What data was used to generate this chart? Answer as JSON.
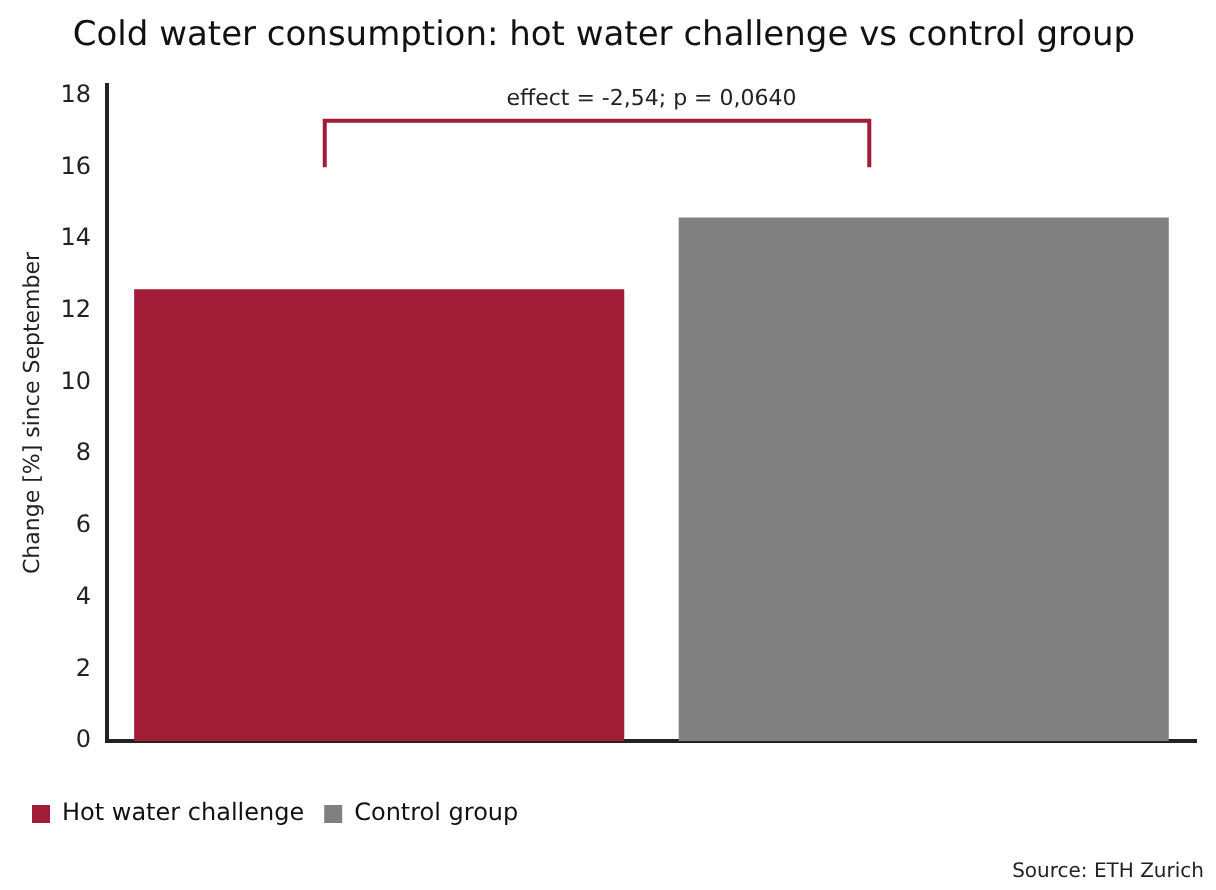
{
  "chart_data": {
    "type": "bar",
    "title": "Cold water consumption: hot water challenge vs control group",
    "ylabel": "Change [%] since September",
    "categories": [
      null,
      null
    ],
    "series": [
      {
        "name": "Hot water challenge",
        "color": "#a01c37",
        "values": [
          12.6,
          null
        ]
      },
      {
        "name": "Control group",
        "color": "#808080",
        "values": [
          null,
          14.6
        ]
      }
    ],
    "ylim": [
      0,
      18.3
    ],
    "yticks": [
      0,
      2,
      4,
      6,
      8,
      10,
      12,
      14,
      16,
      18
    ],
    "grid": false,
    "legend": "bottom left",
    "annotations": [
      "effect = -2,54; p = 0,0640",
      "Source: ETH Zurich"
    ]
  }
}
